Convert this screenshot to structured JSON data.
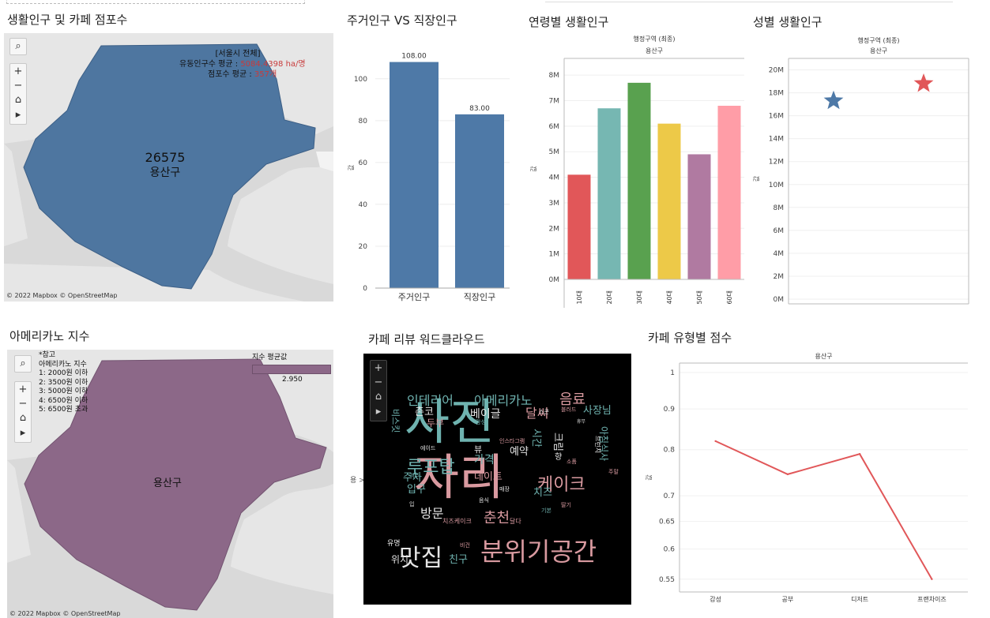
{
  "panels": {
    "map1": {
      "title": "생활인구 및 카페 점포수",
      "value": "26575",
      "district": "용산구",
      "info_title": "[서울시 전체]",
      "info_line1_label": "유동인구수 평균 : ",
      "info_line1_value": "5084.4398 ha/명",
      "info_line2_label": "점포수 평균 : ",
      "info_line2_value": "357개",
      "attribution": "© 2022 Mapbox © OpenStreetMap"
    },
    "bar1": {
      "title": "주거인구 VS 직장인구",
      "ylabel": "값"
    },
    "bar2": {
      "title": "연령별 생활인구",
      "header": "행정구역 (최종)",
      "subheader": "용산구",
      "ylabel": "값"
    },
    "scatter": {
      "title": "성별 생활인구",
      "header": "행정구역 (최종)",
      "subheader": "용산구",
      "ylabel": "값"
    },
    "map2": {
      "title": "아메리카노 지수",
      "legend_title": "지수 평균값",
      "legend_value": "2.950",
      "note_title": "*참고",
      "note_subtitle": "아메리카노 지수",
      "notes": [
        "1: 2000원 이하",
        "2: 3500원 이하",
        "3: 5000원 이하",
        "4: 6500원 이하",
        "5: 6500원 초과"
      ],
      "district": "용산구",
      "attribution": "© 2022 Mapbox © OpenStreetMap"
    },
    "wordcloud": {
      "title": "카페 리뷰 워드클라우드",
      "side_label": "용 >",
      "words": [
        {
          "text": "사진",
          "color": "#6fb3b0"
        },
        {
          "text": "자리",
          "color": "#d99aa0"
        },
        {
          "text": "분위기공간",
          "color": "#d99aa0"
        },
        {
          "text": "맛집",
          "color": "#e4e4e4"
        },
        {
          "text": "루프탑",
          "color": "#6fb3b0"
        },
        {
          "text": "케이크",
          "color": "#d99aa0"
        },
        {
          "text": "인테리어",
          "color": "#6fb3b0"
        },
        {
          "text": "아메리카노",
          "color": "#6fb3b0"
        },
        {
          "text": "음료",
          "color": "#d99aa0"
        },
        {
          "text": "사장님",
          "color": "#6fb3b0"
        },
        {
          "text": "달씨",
          "color": "#d99aa0"
        },
        {
          "text": "베이글",
          "color": "#e4e4e4"
        },
        {
          "text": "춘천",
          "color": "#d99aa0"
        },
        {
          "text": "방문",
          "color": "#e4e4e4"
        },
        {
          "text": "주차",
          "color": "#6fb3b0"
        },
        {
          "text": "입구",
          "color": "#6fb3b0"
        },
        {
          "text": "데이트",
          "color": "#d99aa0"
        },
        {
          "text": "치즈",
          "color": "#6fb3b0"
        },
        {
          "text": "예약",
          "color": "#e4e4e4"
        },
        {
          "text": "가격",
          "color": "#6fb3b0"
        },
        {
          "text": "뷰",
          "color": "#e4e4e4"
        },
        {
          "text": "위치",
          "color": "#e4e4e4"
        },
        {
          "text": "친구",
          "color": "#6fb3b0"
        },
        {
          "text": "유명",
          "color": "#e4e4e4"
        },
        {
          "text": "촌코",
          "color": "#e4e4e4"
        },
        {
          "text": "두부",
          "color": "#d99aa0"
        },
        {
          "text": "크림",
          "color": "#e4e4e4"
        },
        {
          "text": "향",
          "color": "#e4e4e4"
        },
        {
          "text": "인스타그램",
          "color": "#d99aa0"
        },
        {
          "text": "감성",
          "color": "#6fb3b0"
        },
        {
          "text": "블러드",
          "color": "#d99aa0"
        },
        {
          "text": "스콘",
          "color": "#e4e4e4"
        },
        {
          "text": "휴무",
          "color": "#e4e4e4"
        },
        {
          "text": "맥주",
          "color": "#6fb3b0"
        },
        {
          "text": "주말",
          "color": "#d99aa0"
        },
        {
          "text": "딸기",
          "color": "#d99aa0"
        },
        {
          "text": "기본",
          "color": "#6fb3b0"
        },
        {
          "text": "달다",
          "color": "#d99aa0"
        },
        {
          "text": "음식",
          "color": "#e4e4e4"
        },
        {
          "text": "매장",
          "color": "#e4e4e4"
        },
        {
          "text": "치즈케이크",
          "color": "#d99aa0"
        },
        {
          "text": "소품",
          "color": "#d99aa0"
        },
        {
          "text": "비건",
          "color": "#d99aa0"
        },
        {
          "text": "에이드",
          "color": "#e4e4e4"
        },
        {
          "text": "입",
          "color": "#e4e4e4"
        },
        {
          "text": "비스킷",
          "color": "#6fb3b0"
        },
        {
          "text": "시간",
          "color": "#6fb3b0"
        },
        {
          "text": "아침식사",
          "color": "#6fb3b0"
        },
        {
          "text": "브런치",
          "color": "#e4e4e4"
        }
      ]
    },
    "line": {
      "title": "카페 유형별 점수",
      "header": "용산구",
      "ylabel": "값"
    }
  },
  "controls": {
    "search": "⌕",
    "zoom_in": "+",
    "zoom_out": "−",
    "home": "⌂",
    "play": "▸"
  },
  "colors": {
    "map1_fill": "#4e76a0",
    "map2_fill": "#8c6888",
    "bar_blue": "#4e79a7",
    "line_red": "#e15759",
    "wordcloud_bg": "#000000"
  },
  "chart_data": [
    {
      "type": "bar",
      "title": "주거인구 VS 직장인구",
      "categories": [
        "주거인구",
        "직장인구"
      ],
      "values": [
        108.0,
        83.0
      ],
      "data_labels": [
        "108.00",
        "83.00"
      ],
      "ylabel": "값",
      "ylim": [
        0,
        115
      ],
      "yticks": [
        0,
        20,
        40,
        60,
        80,
        100
      ],
      "grid": true,
      "color": "#4e79a7"
    },
    {
      "type": "bar",
      "title": "연령별 생활인구",
      "categories": [
        "10대",
        "20대",
        "30대",
        "40대",
        "50대",
        "60대"
      ],
      "values": [
        4100000,
        6700000,
        7700000,
        6100000,
        4900000,
        6800000
      ],
      "colors": [
        "#e15759",
        "#76b7b2",
        "#59a14f",
        "#edc948",
        "#b07aa1",
        "#ff9da7"
      ],
      "ylabel": "값",
      "ylim": [
        0,
        8500000
      ],
      "yticks": [
        0,
        1000000,
        2000000,
        3000000,
        4000000,
        5000000,
        6000000,
        7000000,
        8000000
      ],
      "ytick_labels": [
        "0M",
        "1M",
        "2M",
        "3M",
        "4M",
        "5M",
        "6M",
        "7M",
        "8M"
      ],
      "grid": true
    },
    {
      "type": "scatter",
      "title": "성별 생활인구",
      "points": [
        {
          "x": 0,
          "y": 17300000,
          "color": "#4e79a7"
        },
        {
          "x": 1,
          "y": 18800000,
          "color": "#e15759"
        }
      ],
      "marker": "star",
      "ylabel": "값",
      "ylim": [
        0,
        21000000
      ],
      "yticks": [
        0,
        2000000,
        4000000,
        6000000,
        8000000,
        10000000,
        12000000,
        14000000,
        16000000,
        18000000,
        20000000
      ],
      "ytick_labels": [
        "0M",
        "2M",
        "4M",
        "6M",
        "8M",
        "10M",
        "12M",
        "14M",
        "16M",
        "18M",
        "20M"
      ],
      "grid": true
    },
    {
      "type": "line",
      "title": "카페 유형별 점수",
      "categories": [
        "감성",
        "공부",
        "디저트",
        "프랜차이즈"
      ],
      "values": [
        0.82,
        0.745,
        0.79,
        0.55
      ],
      "ylabel": "값",
      "ylim": [
        0.53,
        1.0
      ],
      "yticks": [
        0.55,
        0.6,
        0.65,
        0.7,
        0.8,
        0.9,
        1
      ],
      "ytick_labels": [
        "0.55",
        "0.6",
        "0.65",
        "0.7",
        "0.8",
        "0.9",
        "1"
      ],
      "scale": "log",
      "grid": true,
      "color": "#e15759"
    }
  ]
}
